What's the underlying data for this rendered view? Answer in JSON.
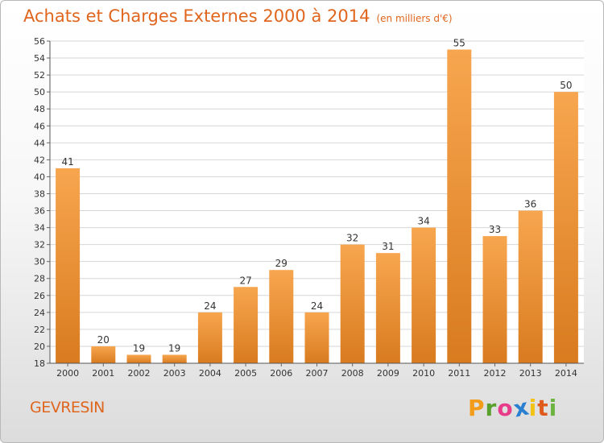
{
  "chart_data": {
    "type": "bar",
    "title": "Achats et Charges Externes 2000 à 2014",
    "unit_note": "(en milliers d'€)",
    "categories": [
      "2000",
      "2001",
      "2002",
      "2003",
      "2004",
      "2005",
      "2006",
      "2007",
      "2008",
      "2009",
      "2010",
      "2011",
      "2012",
      "2013",
      "2014"
    ],
    "values": [
      41,
      20,
      19,
      19,
      24,
      27,
      29,
      24,
      32,
      31,
      34,
      55,
      33,
      36,
      50
    ],
    "ylim": [
      18,
      56
    ],
    "yticks": [
      18,
      20,
      22,
      24,
      26,
      28,
      30,
      32,
      34,
      36,
      38,
      40,
      42,
      44,
      46,
      48,
      50,
      52,
      54,
      56
    ],
    "grid": true,
    "bar_color_light": "#f7a64f",
    "bar_color_dark": "#d97b1f",
    "text_color": "#333333",
    "accent_color": "#e0661e"
  },
  "place_name": "GEVRESIN",
  "logo": {
    "letters": [
      "P",
      "r",
      "o",
      "x",
      "i",
      "t",
      "i"
    ],
    "colors": [
      "#f39c1a",
      "#5aa02c",
      "#e83c8a",
      "#2a7fd0",
      "#f2c314",
      "#e05a1c",
      "#6cb33f"
    ]
  }
}
